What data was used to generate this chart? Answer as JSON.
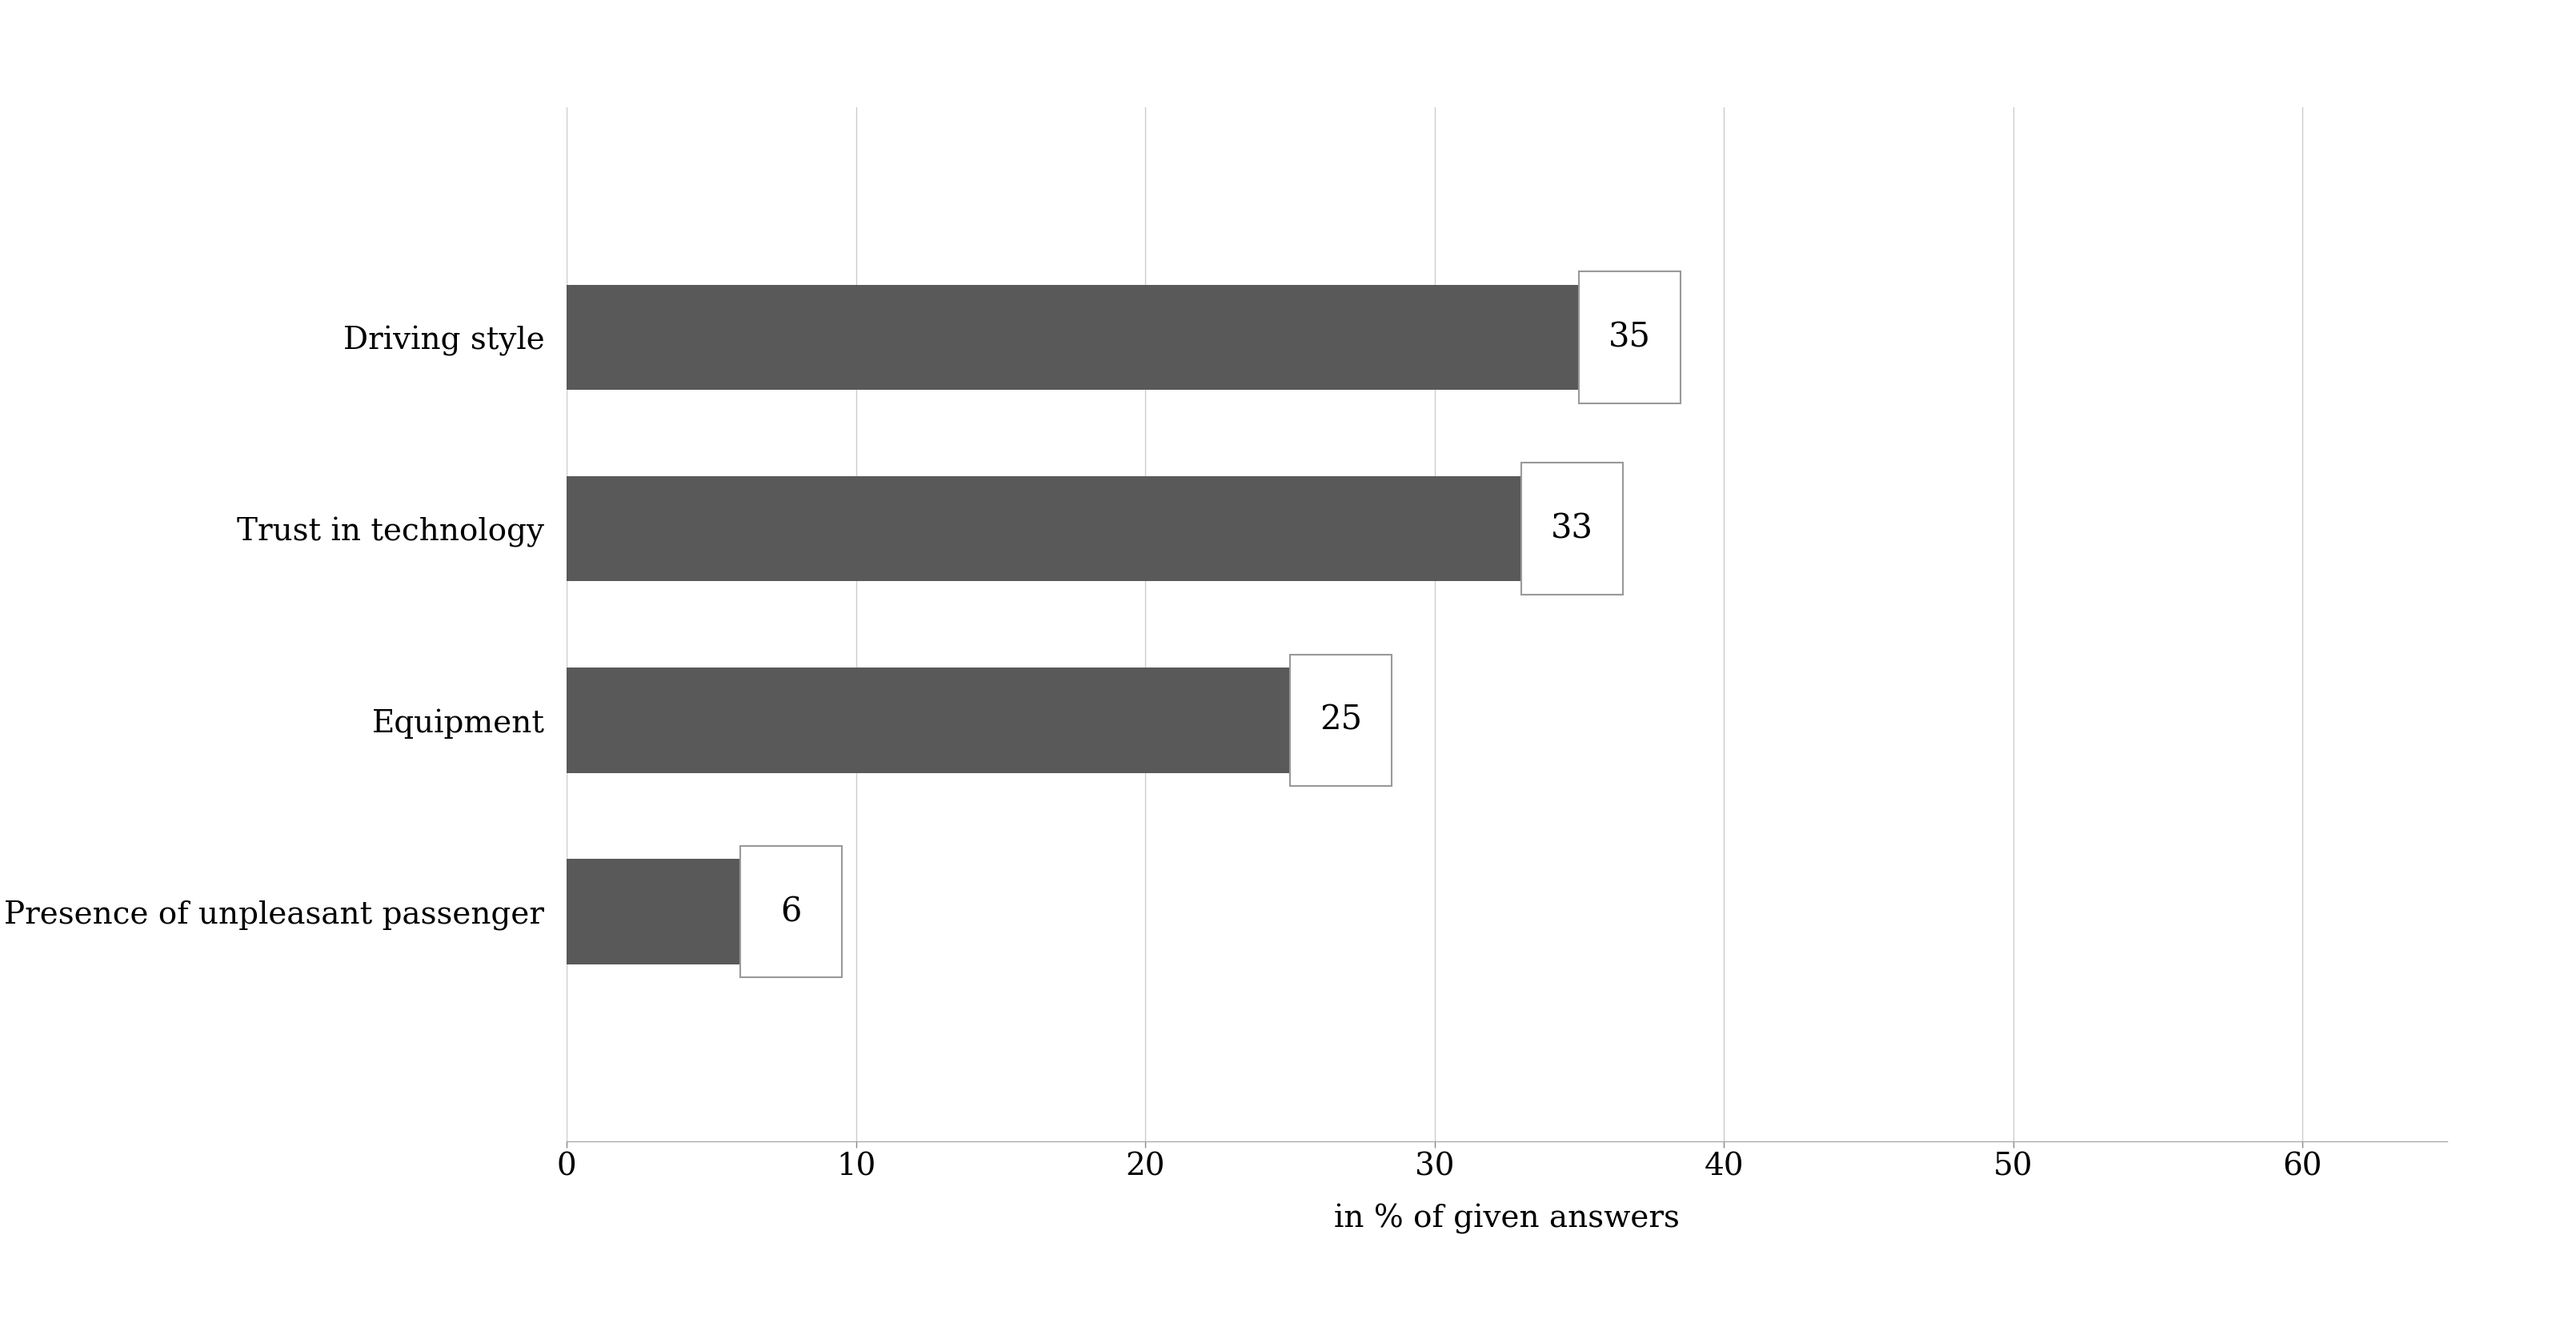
{
  "categories": [
    "Presence of unpleasant passenger",
    "Equipment",
    "Trust in technology",
    "Driving style"
  ],
  "values": [
    6,
    25,
    33,
    35
  ],
  "bar_color": "#595959",
  "label_box_color": "#ffffff",
  "label_box_edge_color": "#999999",
  "xlabel": "in % of given answers",
  "xlim": [
    0,
    65
  ],
  "xticks": [
    0,
    10,
    20,
    30,
    40,
    50,
    60
  ],
  "bar_height": 0.55,
  "figure_bg": "#ffffff",
  "axes_bg": "#ffffff",
  "label_fontsize": 28,
  "tick_fontsize": 28,
  "xlabel_fontsize": 28,
  "value_fontsize": 30,
  "grid_color": "#cccccc",
  "spine_color": "#aaaaaa",
  "box_width": 3.5,
  "ylim_bottom": -1.2,
  "ylim_top": 4.2
}
